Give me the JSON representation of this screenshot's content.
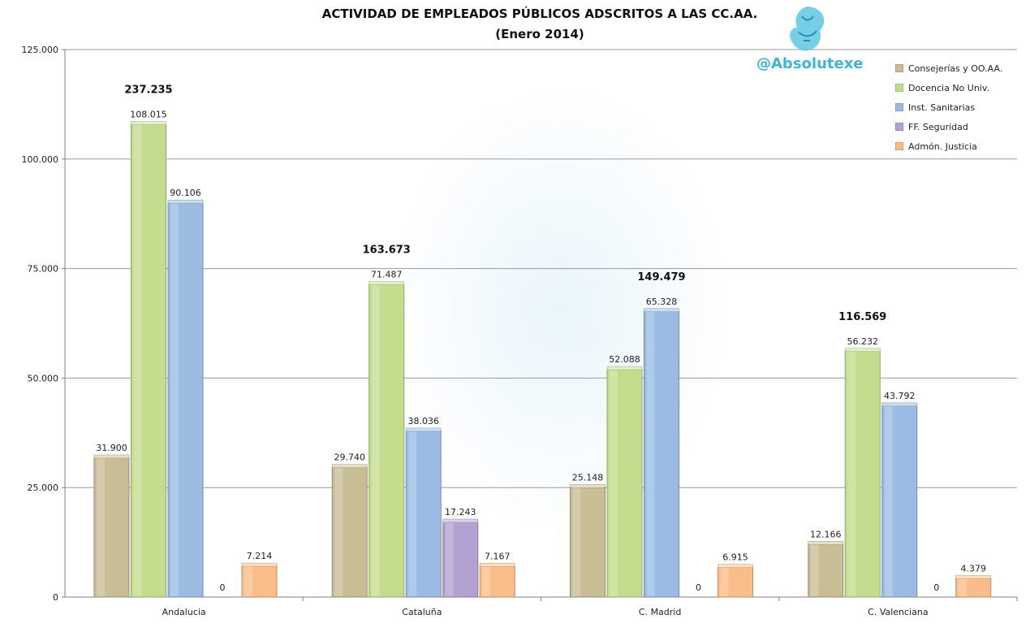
{
  "header": {
    "title_line1": "ACTIVIDAD DE EMPLEADOS PÚBLICOS ADSCRITOS A LAS CC.AA.",
    "title_line2": "(Enero 2014)",
    "handle": "@Absolutexe"
  },
  "chart_data": {
    "type": "bar",
    "title": "ACTIVIDAD DE EMPLEADOS PÚBLICOS ADSCRITOS A LAS CC.AA. (Enero 2014)",
    "xlabel": "",
    "ylabel": "",
    "ylim": [
      0,
      125000
    ],
    "yticks": [
      0,
      25000,
      50000,
      75000,
      100000,
      125000
    ],
    "ytick_labels": [
      "0",
      "25.000",
      "50.000",
      "75.000",
      "100.000",
      "125.000"
    ],
    "grid": true,
    "legend_position": "top-right",
    "categories": [
      "Andalucia",
      "Cataluña",
      "C. Madrid",
      "C. Valenciana"
    ],
    "series": [
      {
        "name": "Consejerías y OO.AA.",
        "color": "#c9bd96",
        "values": [
          31900,
          29740,
          25148,
          12166
        ],
        "labels": [
          "31.900",
          "29.740",
          "25.148",
          "12.166"
        ]
      },
      {
        "name": "Docencia No Univ.",
        "color": "#c3dd8e",
        "values": [
          108015,
          71487,
          52088,
          56232
        ],
        "labels": [
          "108.015",
          "71.487",
          "52.088",
          "56.232"
        ]
      },
      {
        "name": "Inst. Sanitarias",
        "color": "#9bbbe3",
        "values": [
          90106,
          38036,
          65328,
          43792
        ],
        "labels": [
          "90.106",
          "38.036",
          "65.328",
          "43.792"
        ]
      },
      {
        "name": "FF. Seguridad",
        "color": "#b3a2d1",
        "values": [
          0,
          17243,
          0,
          0
        ],
        "labels": [
          "0",
          "17.243",
          "0",
          "0"
        ]
      },
      {
        "name": "Admón. Justicia",
        "color": "#f9bd8a",
        "values": [
          7214,
          7167,
          6915,
          4379
        ],
        "labels": [
          "7.214",
          "7.167",
          "6.915",
          "4.379"
        ]
      }
    ],
    "totals": [
      237235,
      163673,
      149479,
      116569
    ],
    "total_labels": [
      "237.235",
      "163.673",
      "149.479",
      "116.569"
    ]
  }
}
